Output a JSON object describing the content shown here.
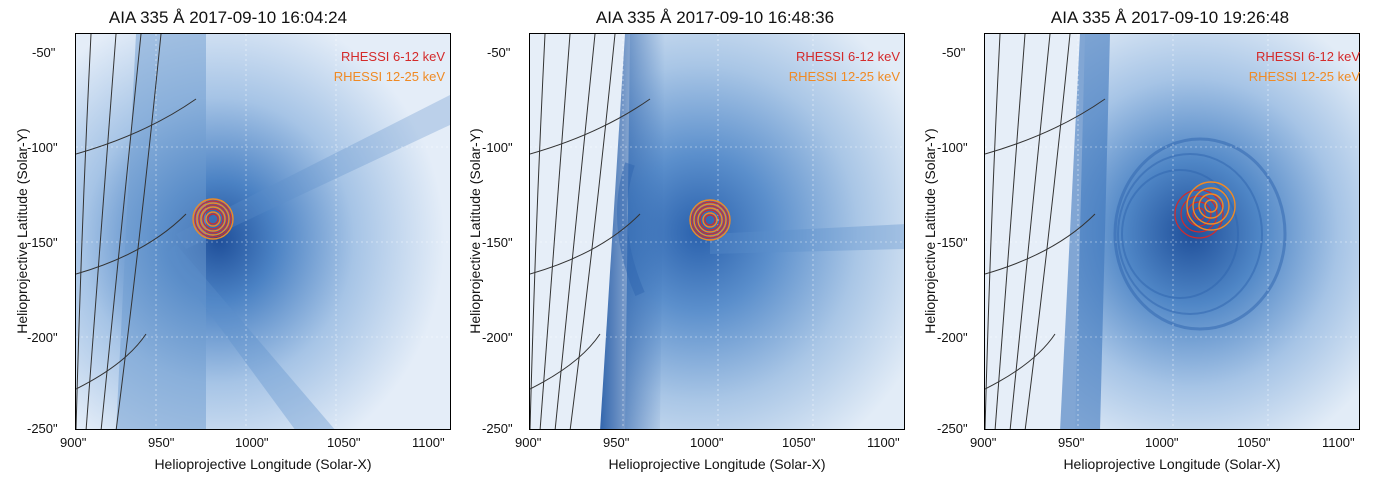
{
  "legend": {
    "entries": [
      {
        "label": "RHESSI 6-12 keV",
        "color": "#d42a2a"
      },
      {
        "label": "RHESSI 12-25 keV",
        "color": "#f08a24"
      }
    ]
  },
  "axes": {
    "xlabel": "Helioprojective Longitude (Solar-X)",
    "ylabel": "Helioprojective Latitude (Solar-Y)",
    "x_ticks": [
      "900\"",
      "950\"",
      "1000\"",
      "1050\"",
      "1100\""
    ],
    "y_ticks": [
      "-50\"",
      "-100\"",
      "-150\"",
      "-200\"",
      "-250\""
    ]
  },
  "panels": [
    {
      "title": "AIA 335 Å 2017-09-10 16:04:24"
    },
    {
      "title": "AIA 335 Å 2017-09-10 16:48:36"
    },
    {
      "title": "AIA 335 Å 2017-09-10 19:26:48"
    }
  ],
  "colors": {
    "image_light": "#d9e6f4",
    "image_mid": "#7fa9d6",
    "image_dark": "#2a5ea8",
    "grid_lines": "#333333"
  }
}
